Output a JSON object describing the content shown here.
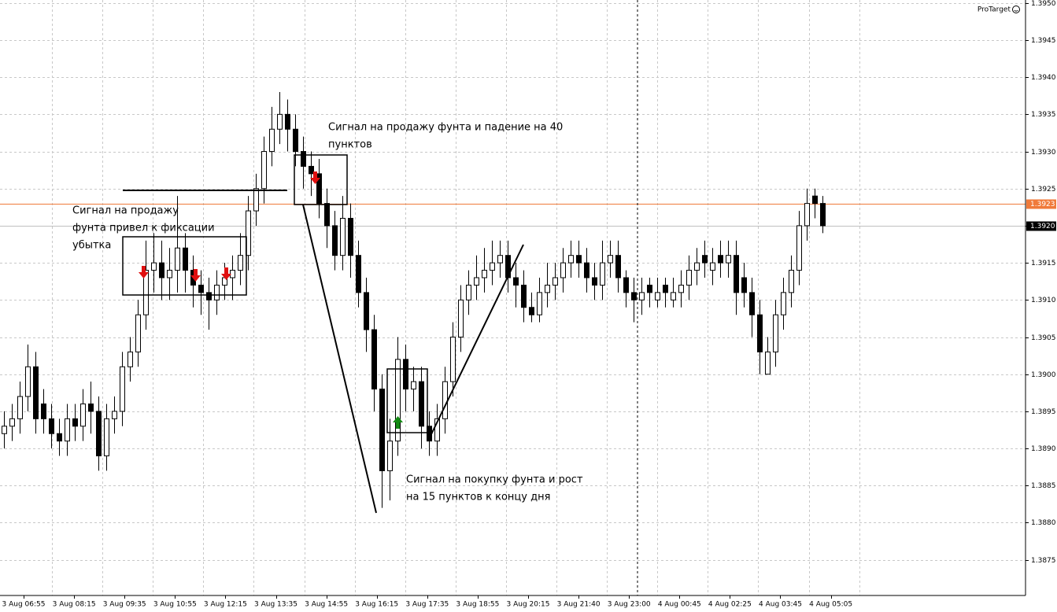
{
  "chart_data": {
    "type": "candlestick",
    "watermark": "ProTarget",
    "open": [
      1.3892,
      1.3893,
      1.3894,
      1.3897,
      1.3901,
      1.3896,
      1.3894,
      1.3892,
      1.3891,
      1.3894,
      1.3893,
      1.3896,
      1.3895,
      1.3889,
      1.3894,
      1.3895,
      1.3901,
      1.3903,
      1.3908,
      1.3914,
      1.3915,
      1.3913,
      1.3914,
      1.3917,
      1.3914,
      1.3912,
      1.3911,
      1.391,
      1.3912,
      1.3913,
      1.3914,
      1.3916,
      1.3922,
      1.3925,
      1.393,
      1.3933,
      1.3935,
      1.3933,
      1.393,
      1.3928,
      1.3927,
      1.3923,
      1.392,
      1.3916,
      1.3921,
      1.3916,
      1.3911,
      1.3906,
      1.3898,
      1.3887,
      1.3891,
      1.3902,
      1.3898,
      1.3899,
      1.3893,
      1.3891,
      1.3894,
      1.3899,
      1.3905,
      1.391,
      1.3912,
      1.3913,
      1.3914,
      1.3915,
      1.3916,
      1.3913,
      1.3912,
      1.3909,
      1.3908,
      1.3911,
      1.3912,
      1.3913,
      1.3915,
      1.3916,
      1.3915,
      1.3913,
      1.3912,
      1.3915,
      1.3916,
      1.3913,
      1.3911,
      1.391,
      1.3912,
      1.391,
      1.3912,
      1.391,
      1.3911,
      1.3912,
      1.3914,
      1.3916,
      1.3914,
      1.3916,
      1.3915,
      1.3916,
      1.3913,
      1.3911,
      1.3908,
      1.39,
      1.3903,
      1.3908,
      1.3911,
      1.3914,
      1.392,
      1.3924,
      1.3923
    ],
    "high": [
      1.3895,
      1.3896,
      1.3899,
      1.3904,
      1.3903,
      1.3898,
      1.3896,
      1.3894,
      1.3896,
      1.3896,
      1.3898,
      1.3899,
      1.3897,
      1.3896,
      1.3897,
      1.3903,
      1.3905,
      1.391,
      1.3918,
      1.3919,
      1.3918,
      1.3917,
      1.3924,
      1.3919,
      1.3916,
      1.3914,
      1.3913,
      1.3914,
      1.3915,
      1.3916,
      1.3919,
      1.3924,
      1.3927,
      1.3932,
      1.3936,
      1.3938,
      1.3937,
      1.3935,
      1.3932,
      1.393,
      1.3929,
      1.3925,
      1.3922,
      1.3924,
      1.3923,
      1.3918,
      1.3913,
      1.3908,
      1.39,
      1.3894,
      1.3905,
      1.3904,
      1.3901,
      1.3901,
      1.3895,
      1.3896,
      1.3901,
      1.3907,
      1.3912,
      1.3914,
      1.3916,
      1.3917,
      1.3918,
      1.3918,
      1.3918,
      1.3915,
      1.3914,
      1.3911,
      1.3913,
      1.3915,
      1.3915,
      1.3917,
      1.3918,
      1.3918,
      1.3917,
      1.3915,
      1.3918,
      1.3918,
      1.3918,
      1.3914,
      1.3913,
      1.3913,
      1.3913,
      1.3913,
      1.3913,
      1.3913,
      1.3914,
      1.3916,
      1.3917,
      1.3918,
      1.3917,
      1.3918,
      1.3918,
      1.3918,
      1.3915,
      1.3913,
      1.391,
      1.3905,
      1.391,
      1.3913,
      1.3916,
      1.3922,
      1.3925,
      1.3925,
      1.3924
    ],
    "low": [
      1.389,
      1.3891,
      1.3892,
      1.3895,
      1.3892,
      1.3892,
      1.389,
      1.3889,
      1.3889,
      1.3891,
      1.3891,
      1.3892,
      1.3887,
      1.3887,
      1.3892,
      1.3893,
      1.3899,
      1.3901,
      1.3906,
      1.3911,
      1.391,
      1.391,
      1.3911,
      1.3911,
      1.3909,
      1.3908,
      1.3906,
      1.3908,
      1.391,
      1.391,
      1.3912,
      1.3914,
      1.392,
      1.3923,
      1.3928,
      1.3931,
      1.393,
      1.3928,
      1.3925,
      1.3924,
      1.3921,
      1.3917,
      1.3914,
      1.3914,
      1.3913,
      1.3909,
      1.3903,
      1.3895,
      1.3882,
      1.3883,
      1.3889,
      1.3895,
      1.3895,
      1.389,
      1.3889,
      1.3889,
      1.3892,
      1.3897,
      1.3903,
      1.3908,
      1.391,
      1.3911,
      1.3912,
      1.3913,
      1.3911,
      1.3909,
      1.3907,
      1.3907,
      1.3907,
      1.3909,
      1.391,
      1.3911,
      1.3913,
      1.3913,
      1.3911,
      1.391,
      1.391,
      1.3913,
      1.3911,
      1.3909,
      1.3907,
      1.3908,
      1.3909,
      1.3909,
      1.3909,
      1.3909,
      1.3909,
      1.391,
      1.3912,
      1.3913,
      1.3912,
      1.3913,
      1.3913,
      1.3908,
      1.3909,
      1.3905,
      1.39,
      1.39,
      1.3901,
      1.3906,
      1.3909,
      1.3912,
      1.3918,
      1.3921,
      1.3919
    ],
    "close": [
      1.3893,
      1.3894,
      1.3897,
      1.3901,
      1.3894,
      1.3894,
      1.3892,
      1.3891,
      1.3894,
      1.3893,
      1.3896,
      1.3895,
      1.3889,
      1.3894,
      1.3895,
      1.3901,
      1.3903,
      1.3908,
      1.3914,
      1.3915,
      1.3913,
      1.3914,
      1.3917,
      1.3914,
      1.3912,
      1.3911,
      1.391,
      1.3912,
      1.3913,
      1.3914,
      1.3916,
      1.3922,
      1.3925,
      1.393,
      1.3933,
      1.3935,
      1.3933,
      1.393,
      1.3928,
      1.3927,
      1.3923,
      1.392,
      1.3916,
      1.3921,
      1.3916,
      1.3911,
      1.3906,
      1.3898,
      1.3887,
      1.3891,
      1.3902,
      1.3898,
      1.3899,
      1.3893,
      1.3891,
      1.3894,
      1.3899,
      1.3905,
      1.391,
      1.3912,
      1.3913,
      1.3914,
      1.3915,
      1.3916,
      1.3913,
      1.3912,
      1.3909,
      1.3908,
      1.3911,
      1.3912,
      1.3913,
      1.3915,
      1.3916,
      1.3915,
      1.3913,
      1.3912,
      1.3915,
      1.3916,
      1.3913,
      1.3911,
      1.391,
      1.3911,
      1.3911,
      1.3911,
      1.3911,
      1.3911,
      1.3912,
      1.3914,
      1.3915,
      1.3915,
      1.3915,
      1.3915,
      1.3916,
      1.3911,
      1.3911,
      1.3908,
      1.3903,
      1.3903,
      1.3908,
      1.3911,
      1.3914,
      1.392,
      1.3923,
      1.3923,
      1.392
    ],
    "up_color": "#ffffff",
    "down_color": "#000000",
    "x_labels": [
      "3 Aug 06:55",
      "3 Aug 08:15",
      "3 Aug 09:35",
      "3 Aug 10:55",
      "3 Aug 12:15",
      "3 Aug 13:35",
      "3 Aug 14:55",
      "3 Aug 16:15",
      "3 Aug 17:35",
      "3 Aug 18:55",
      "3 Aug 20:15",
      "3 Aug 21:40",
      "3 Aug 23:00",
      "4 Aug 00:45",
      "4 Aug 02:25",
      "4 Aug 03:45",
      "4 Aug 05:05"
    ],
    "ylim": [
      1.38702,
      1.39504
    ],
    "yticks": [
      1.3875,
      {
        "value": 1.388,
        "label": "1.3880"
      },
      1.3885,
      {
        "value": 1.389,
        "label": "1.3890"
      },
      1.3895,
      {
        "value": 1.39,
        "label": "1.3900"
      },
      1.3905,
      {
        "value": 1.391,
        "label": "1.3910"
      },
      1.3915,
      {
        "value": 1.392,
        "label": "1.3920"
      },
      1.3925,
      {
        "value": 1.393,
        "label": "1.3930"
      },
      1.3935,
      {
        "value": 1.394,
        "label": "1.3940"
      },
      1.3945,
      {
        "value": 1.395,
        "label": "1.3950"
      }
    ],
    "grid": true,
    "level_line": 1.3923,
    "level_color": "#f07a3a",
    "current_price": {
      "value": 1.392,
      "label": "1.3920"
    },
    "annotations": [
      [
        "Сигнал на продажу фунта и падение на 40",
        "пунктов"
      ],
      [
        "Сигнал на продажу",
        "фунта привел к фиксации",
        "убытка"
      ],
      [
        "Сигнал на покупку фунта и рост",
        "на 15 пунктов к концу дня"
      ]
    ]
  }
}
